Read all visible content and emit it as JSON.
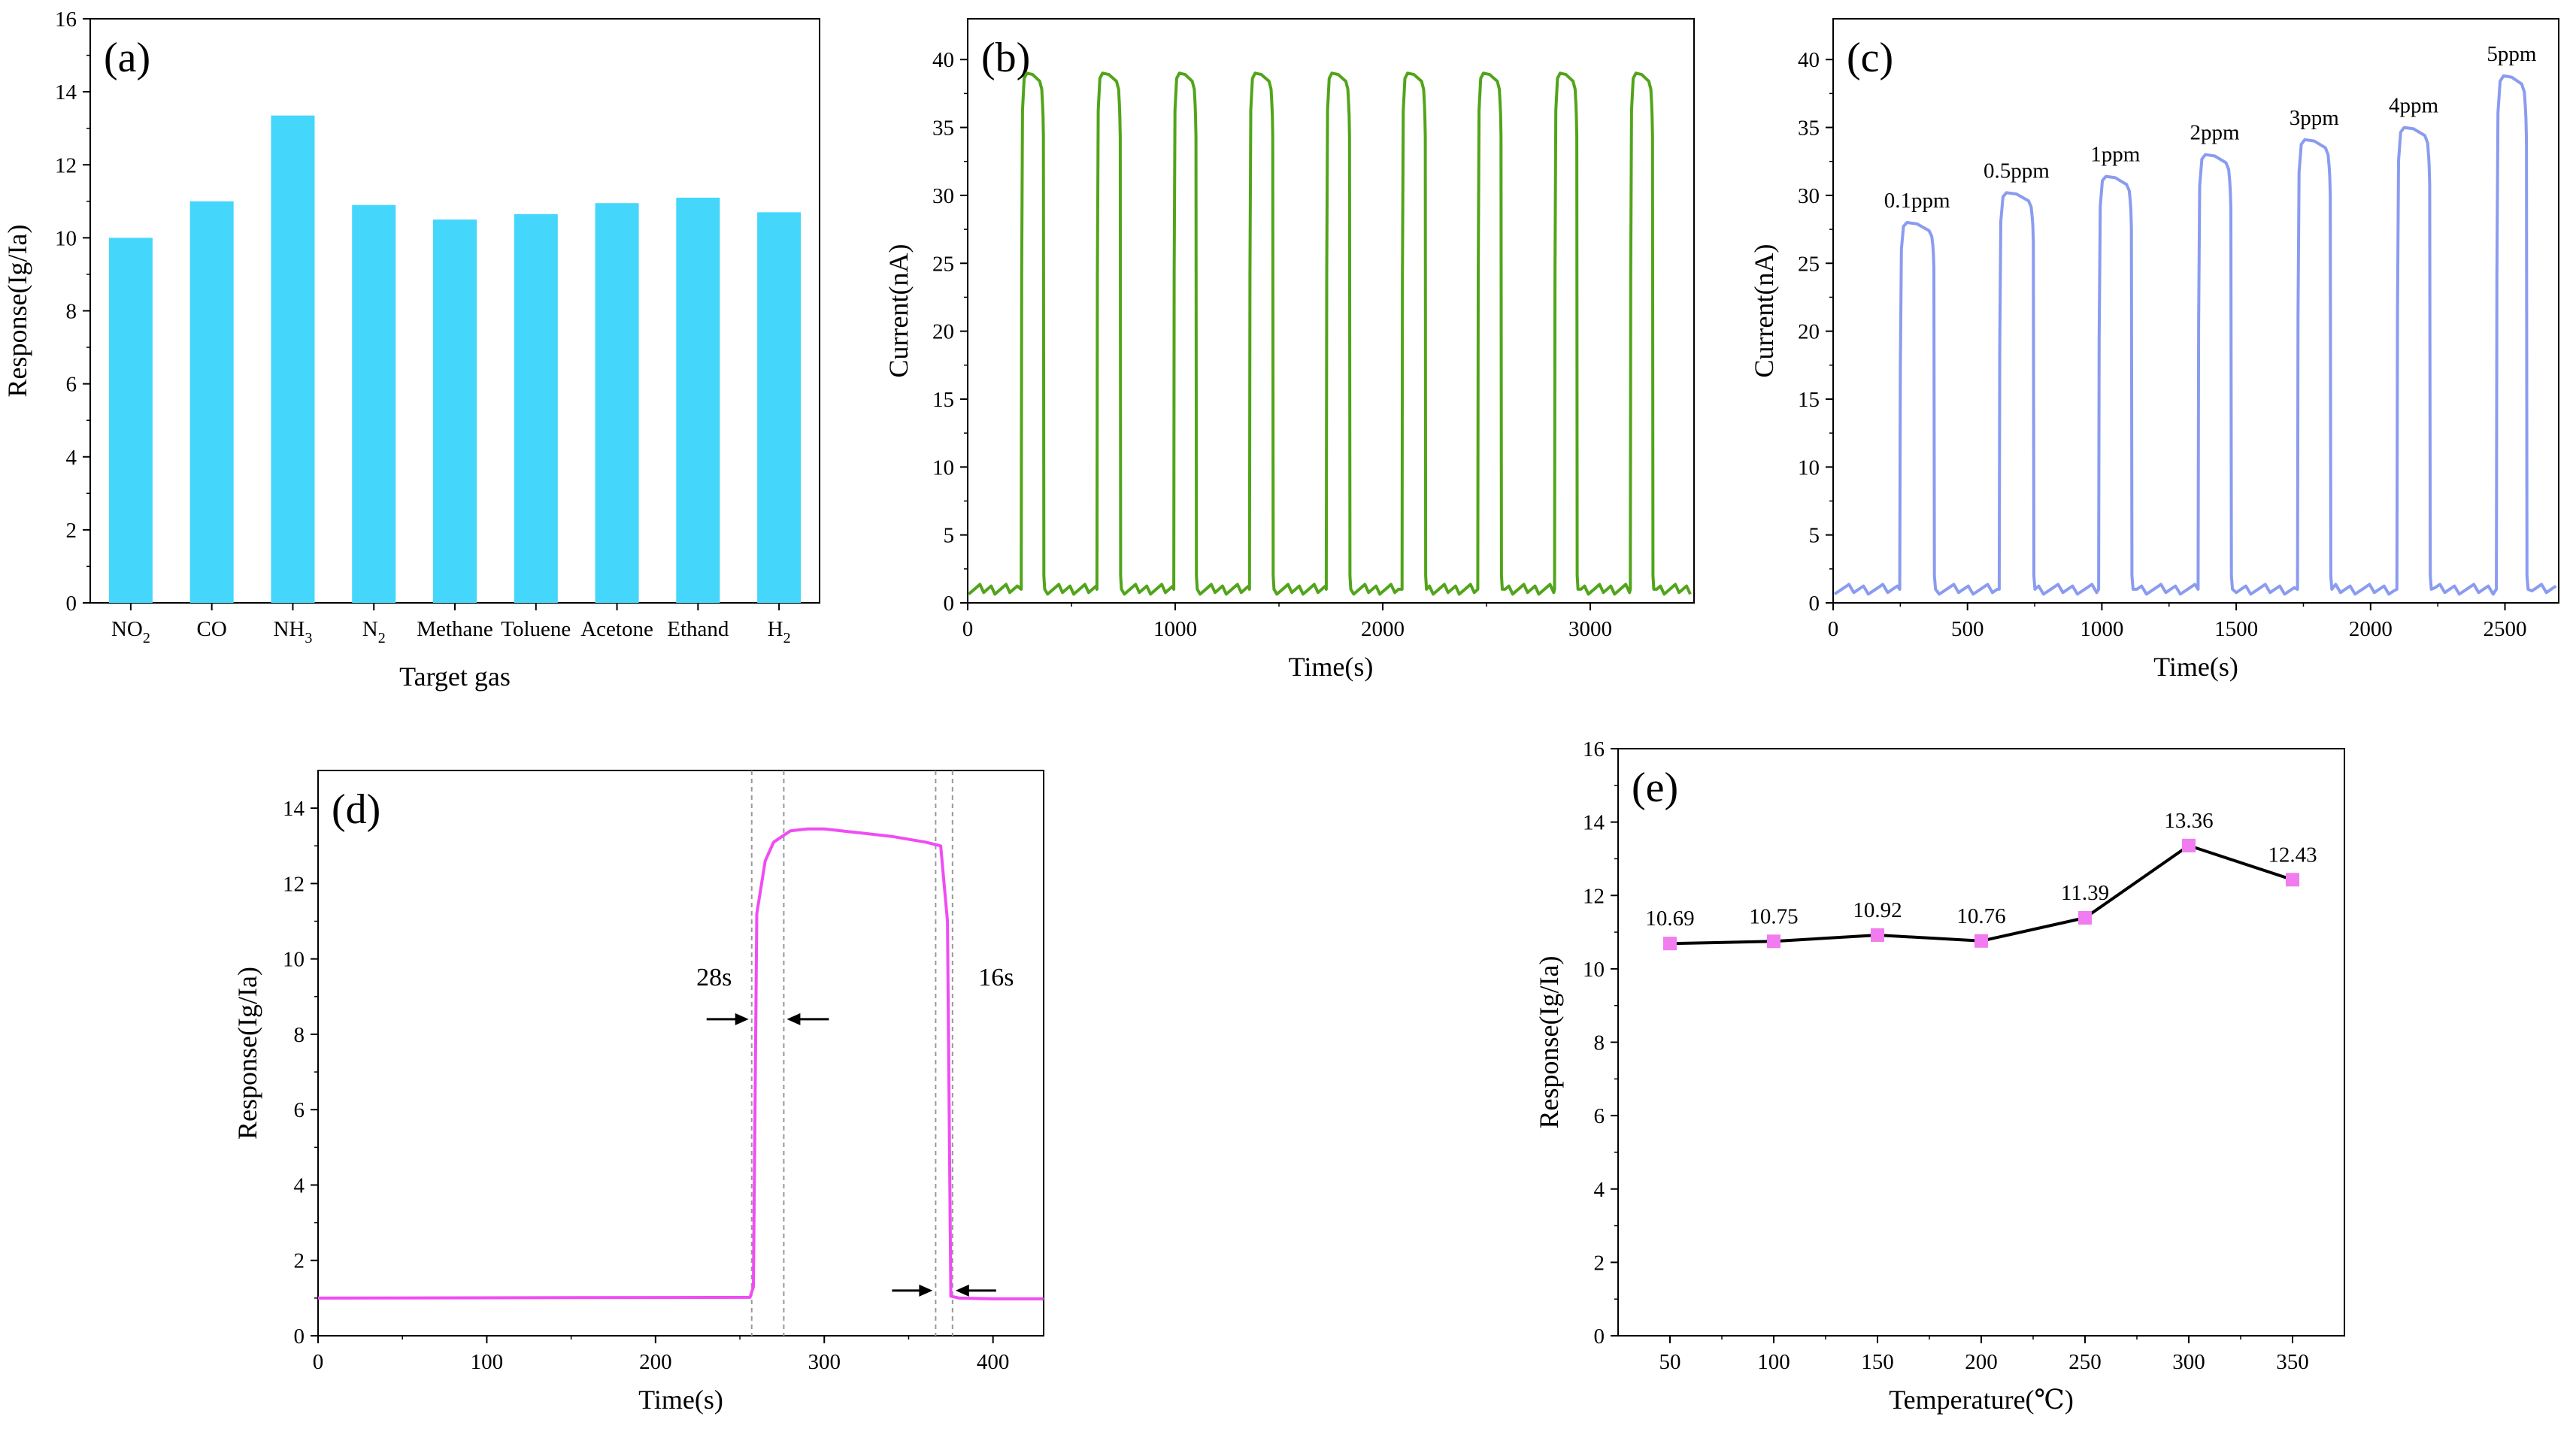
{
  "chart_data": [
    {
      "id": "a",
      "panel_label": "(a)",
      "type": "bar",
      "title": "",
      "xlabel": "Target gas",
      "ylabel": "Response(Ig/Ia)",
      "ylim": [
        0,
        16
      ],
      "yticks": [
        0,
        2,
        4,
        6,
        8,
        10,
        12,
        14,
        16
      ],
      "categories": [
        {
          "base": "NO",
          "sub": "2"
        },
        {
          "base": "CO",
          "sub": ""
        },
        {
          "base": "NH",
          "sub": "3"
        },
        {
          "base": "N",
          "sub": "2"
        },
        {
          "base": "Methane",
          "sub": ""
        },
        {
          "base": "Toluene",
          "sub": ""
        },
        {
          "base": "Acetone",
          "sub": ""
        },
        {
          "base": "Ethand",
          "sub": ""
        },
        {
          "base": "H",
          "sub": "2"
        }
      ],
      "values": [
        10.0,
        11.0,
        13.35,
        10.9,
        10.5,
        10.65,
        10.95,
        11.1,
        10.7
      ],
      "color": "#44d6fb"
    },
    {
      "id": "b",
      "panel_label": "(b)",
      "type": "line",
      "title": "",
      "xlabel": "Time(s)",
      "ylabel": "Current(nA)",
      "xlim": [
        0,
        3500
      ],
      "ylim": [
        0,
        43
      ],
      "xticks": [
        0,
        1000,
        2000,
        3000
      ],
      "yticks": [
        0,
        5,
        10,
        15,
        20,
        25,
        30,
        35,
        40
      ],
      "color": "#52a41a",
      "baseline": 1.0,
      "pulses": [
        {
          "on": 260,
          "off": 365,
          "peak": 39
        },
        {
          "on": 625,
          "off": 735,
          "peak": 39
        },
        {
          "on": 995,
          "off": 1100,
          "peak": 39
        },
        {
          "on": 1360,
          "off": 1470,
          "peak": 39
        },
        {
          "on": 1730,
          "off": 1840,
          "peak": 39
        },
        {
          "on": 2095,
          "off": 2205,
          "peak": 39
        },
        {
          "on": 2460,
          "off": 2570,
          "peak": 39
        },
        {
          "on": 2830,
          "off": 2935,
          "peak": 39
        },
        {
          "on": 3195,
          "off": 3300,
          "peak": 39
        }
      ]
    },
    {
      "id": "c",
      "panel_label": "(c)",
      "type": "line",
      "title": "",
      "xlabel": "Time(s)",
      "ylabel": "Current(nA)",
      "xlim": [
        0,
        2700
      ],
      "ylim": [
        0,
        43
      ],
      "xticks": [
        0,
        500,
        1000,
        1500,
        2000,
        2500
      ],
      "yticks": [
        0,
        5,
        10,
        15,
        20,
        25,
        30,
        35,
        40
      ],
      "color": "#8a9cf0",
      "baseline": 1.0,
      "pulses": [
        {
          "on": 250,
          "off": 375,
          "peak": 28.0,
          "label": "0.1ppm"
        },
        {
          "on": 620,
          "off": 745,
          "peak": 30.2,
          "label": "0.5ppm"
        },
        {
          "on": 990,
          "off": 1110,
          "peak": 31.4,
          "label": "1ppm"
        },
        {
          "on": 1360,
          "off": 1480,
          "peak": 33.0,
          "label": "2ppm"
        },
        {
          "on": 1730,
          "off": 1850,
          "peak": 34.1,
          "label": "3ppm"
        },
        {
          "on": 2100,
          "off": 2220,
          "peak": 35.0,
          "label": "4ppm"
        },
        {
          "on": 2470,
          "off": 2580,
          "peak": 38.8,
          "label": "5ppm"
        }
      ]
    },
    {
      "id": "d",
      "panel_label": "(d)",
      "type": "line",
      "title": "",
      "xlabel": "Time(s)",
      "ylabel": "Response(Ig/Ia)",
      "xlim": [
        0,
        430
      ],
      "ylim": [
        0,
        15
      ],
      "xticks": [
        0,
        100,
        200,
        300,
        400
      ],
      "yticks": [
        0,
        2,
        4,
        6,
        8,
        10,
        12,
        14
      ],
      "color": "#f04cf4",
      "x": [
        0,
        256,
        258,
        260,
        265,
        270,
        280,
        290,
        300,
        320,
        340,
        360,
        369,
        371,
        373,
        375,
        380,
        400,
        430
      ],
      "y": [
        1.0,
        1.02,
        1.3,
        11.2,
        12.6,
        13.1,
        13.4,
        13.45,
        13.45,
        13.35,
        13.25,
        13.1,
        13.0,
        12.0,
        11.0,
        1.05,
        1.0,
        0.98,
        0.98
      ],
      "markers": [
        257,
        276,
        366,
        376
      ],
      "response_time_label": "28s",
      "recovery_time_label": "16s"
    },
    {
      "id": "e",
      "panel_label": "(e)",
      "type": "line",
      "title": "",
      "xlabel": "Temperature(℃)",
      "ylabel": "Response(Ig/Ia)",
      "xlim": [
        25,
        375
      ],
      "ylim": [
        0,
        16
      ],
      "xticks": [
        50,
        100,
        150,
        200,
        250,
        300,
        350
      ],
      "yticks": [
        0,
        2,
        4,
        6,
        8,
        10,
        12,
        14,
        16
      ],
      "line_color": "#000000",
      "marker_color": "#f07cf0",
      "x": [
        50,
        100,
        150,
        200,
        250,
        300,
        350
      ],
      "y": [
        10.69,
        10.75,
        10.92,
        10.76,
        11.39,
        13.36,
        12.43
      ],
      "labels": [
        "10.69",
        "10.75",
        "10.92",
        "10.76",
        "11.39",
        "13.36",
        "12.43"
      ]
    }
  ]
}
